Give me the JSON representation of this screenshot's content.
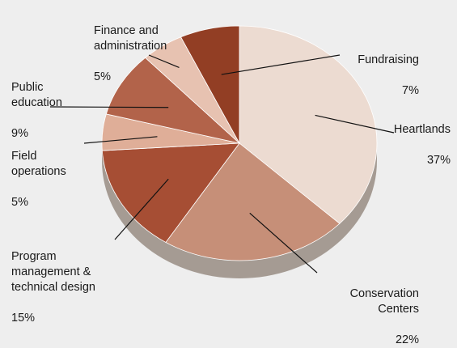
{
  "chart_data": {
    "type": "pie",
    "title": "",
    "slices": [
      {
        "name": "Heartlands",
        "label": "Heartlands",
        "value": 37,
        "value_label": "37%",
        "color": "#ecdbd1"
      },
      {
        "name": "Conservation Centers",
        "label": "Conservation\nCenters",
        "value": 22,
        "value_label": "22%",
        "color": "#c68f78"
      },
      {
        "name": "Program management & technical design",
        "label": "Program\nmanagement &\ntechnical design",
        "value": 15,
        "value_label": "15%",
        "color": "#a64e34"
      },
      {
        "name": "Field operations",
        "label": "Field\noperations",
        "value": 5,
        "value_label": "5%",
        "color": "#dfae98"
      },
      {
        "name": "Public education",
        "label": "Public\neducation",
        "value": 9,
        "value_label": "9%",
        "color": "#b2634a"
      },
      {
        "name": "Finance and administration",
        "label": "Finance and\nadministration",
        "value": 5,
        "value_label": "5%",
        "color": "#e7c2b1"
      },
      {
        "name": "Fundraising",
        "label": "Fundraising",
        "value": 7,
        "value_label": "7%",
        "color": "#923e24"
      }
    ],
    "side_color": "#a59b93",
    "background": "#eeeeee"
  }
}
